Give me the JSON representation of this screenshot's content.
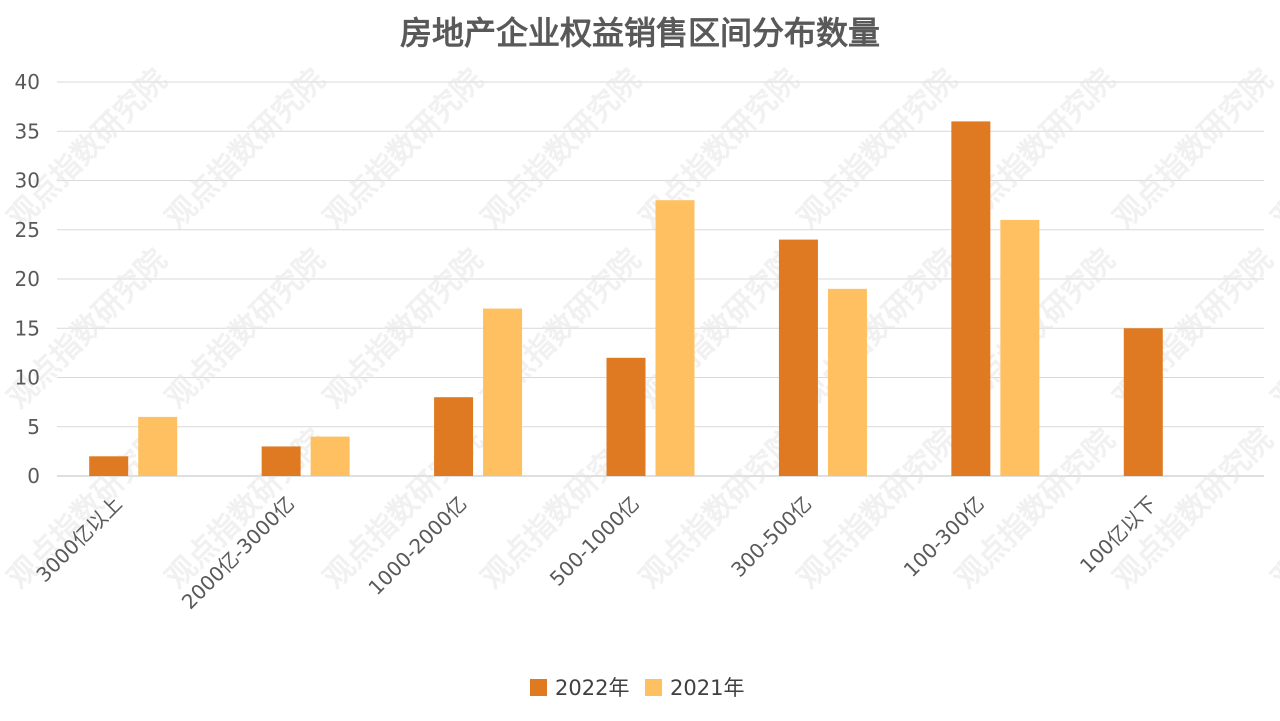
{
  "chart_data": {
    "type": "bar",
    "title": "房地产企业权益销售区间分布数量",
    "categories": [
      "3000亿以上",
      "2000亿-3000亿",
      "1000-2000亿",
      "500-1000亿",
      "300-500亿",
      "100-300亿",
      "100亿以下"
    ],
    "series": [
      {
        "name": "2022年",
        "color": "#E07A22",
        "values": [
          2,
          3,
          8,
          12,
          24,
          36,
          15
        ]
      },
      {
        "name": "2021年",
        "color": "#FEC060",
        "values": [
          6,
          4,
          17,
          28,
          19,
          26,
          null
        ]
      }
    ],
    "ylim": [
      0,
      40
    ],
    "yticks": [
      "0",
      "5",
      "10",
      "15",
      "20",
      "25",
      "30",
      "35",
      "40"
    ],
    "grid": true,
    "legend": "bottom",
    "xlabel": "",
    "ylabel": ""
  },
  "watermark": {
    "text": "观点指数研究院"
  }
}
